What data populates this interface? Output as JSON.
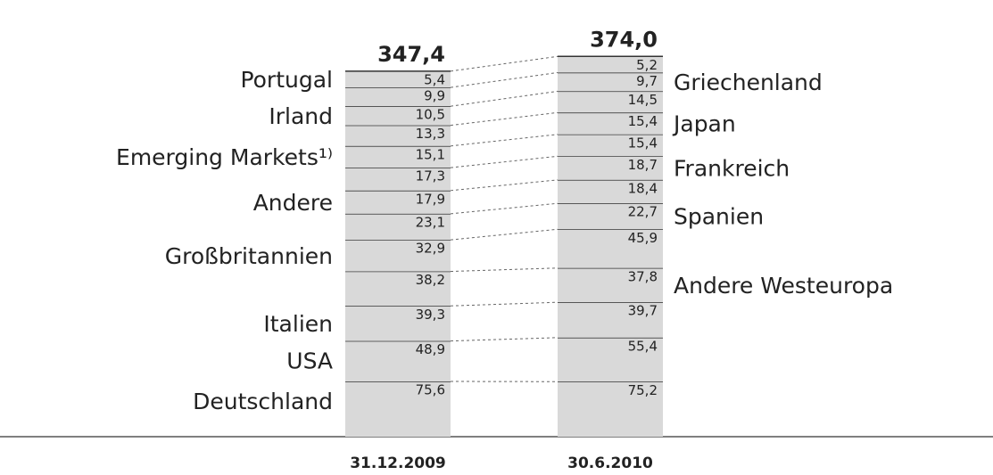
{
  "chart_data": {
    "type": "bar",
    "stacked": true,
    "columns": [
      {
        "category": "31.12.2009",
        "total": 347.4,
        "total_label": "347,4",
        "names": [
          "Portugal",
          null,
          "Irland",
          null,
          "Emerging Markets¹⁾",
          null,
          "Andere",
          null,
          "Großbritannien",
          null,
          "Italien",
          "USA",
          "Deutschland"
        ],
        "values": [
          5.4,
          9.9,
          10.5,
          13.3,
          15.1,
          17.3,
          17.9,
          23.1,
          32.9,
          38.2,
          39.3,
          48.9,
          75.6
        ],
        "value_labels": [
          "5,4",
          "9,9",
          "10,5",
          "13,3",
          "15,1",
          "17,3",
          "17,9",
          "23,1",
          "32,9",
          "38,2",
          "39,3",
          "48,9",
          "75,6"
        ]
      },
      {
        "category": "30.6.2010",
        "total": 374.0,
        "total_label": "374,0",
        "names": [
          null,
          "Griechenland",
          null,
          "Japan",
          null,
          "Frankreich",
          null,
          "Spanien",
          null,
          "Andere Westeuropa",
          null,
          null,
          null
        ],
        "values": [
          5.2,
          9.7,
          14.5,
          15.4,
          15.4,
          18.7,
          18.4,
          22.7,
          45.9,
          37.8,
          39.7,
          55.4,
          75.2
        ],
        "value_labels": [
          "5,2",
          "9,7",
          "14,5",
          "15,4",
          "15,4",
          "18,7",
          "18,4",
          "22,7",
          "45,9",
          "37,8",
          "39,7",
          "55,4",
          "75,2"
        ]
      }
    ],
    "color": "#d9d9d9"
  }
}
